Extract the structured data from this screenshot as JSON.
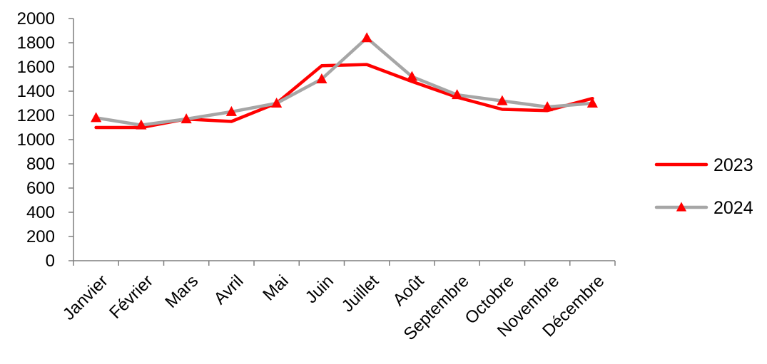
{
  "chart_data": {
    "type": "line",
    "title": "",
    "xlabel": "",
    "ylabel": "",
    "categories": [
      "Janvier",
      "Février",
      "Mars",
      "Avril",
      "Mai",
      "Juin",
      "Juillet",
      "Août",
      "Septembre",
      "Octobre",
      "Novembre",
      "Décembre"
    ],
    "ylim": [
      0,
      2000
    ],
    "yticks": [
      "0",
      "200",
      "400",
      "600",
      "800",
      "1000",
      "1200",
      "1400",
      "1600",
      "1800",
      "2000"
    ],
    "grid": false,
    "legend_position": "right",
    "series": [
      {
        "name": "2023",
        "color": "#ff0000",
        "marker": "none",
        "values": [
          1100,
          1100,
          1170,
          1150,
          1300,
          1610,
          1620,
          1480,
          1350,
          1250,
          1240,
          1340
        ]
      },
      {
        "name": "2024",
        "color": "#a6a6a6",
        "marker": "triangle",
        "marker_color": "#ff0000",
        "values": [
          1180,
          1120,
          1170,
          1230,
          1300,
          1500,
          1840,
          1520,
          1370,
          1320,
          1270,
          1300
        ]
      }
    ]
  }
}
